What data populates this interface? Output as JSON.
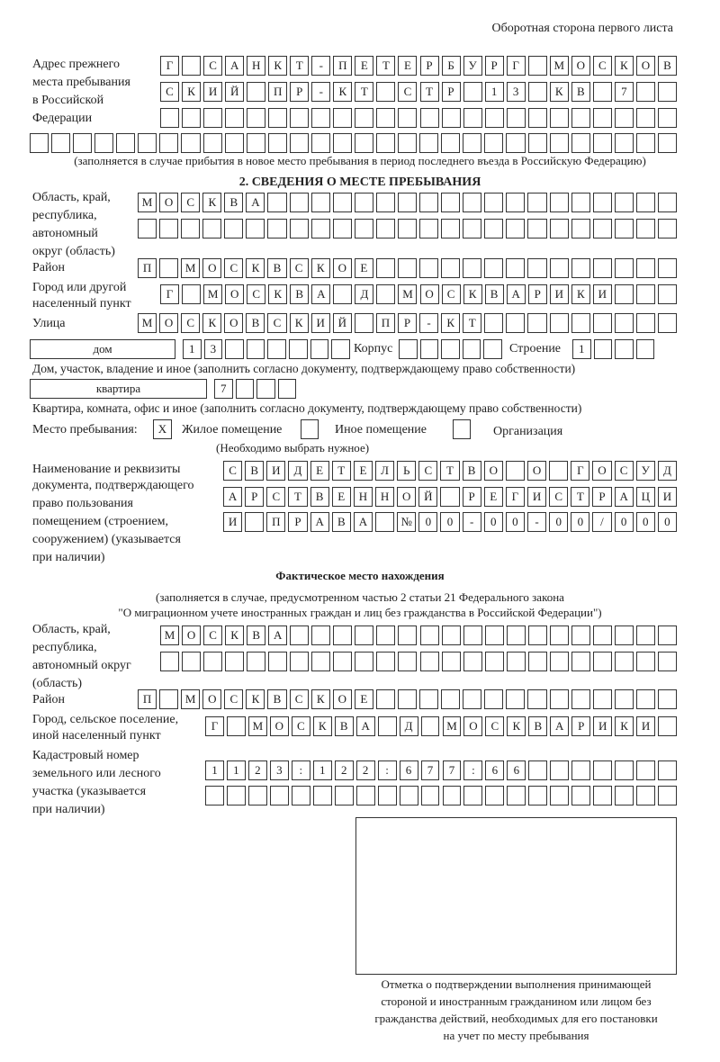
{
  "header": "Оборотная сторона первого листа",
  "prev_address": {
    "label": [
      "Адрес прежнего",
      "места пребывания",
      "в Российской",
      "Федерации"
    ],
    "rows": [
      "Г САНКТ-ПЕТЕРБУРГ МОСКОВ",
      "СКИЙ ПР-КТ СТР 13 КВ 7  ",
      "                        ",
      "                              "
    ],
    "note": "(заполняется в случае прибытия в новое место пребывания в период последнего въезда в Российскую Федерацию)"
  },
  "section2": {
    "title": "2. СВЕДЕНИЯ О МЕСТЕ ПРЕБЫВАНИЯ",
    "region_label": [
      "Область, край,",
      "республика,",
      "автономный",
      "округ (область)"
    ],
    "region_rows": [
      "МОСКВА                   ",
      "                         "
    ],
    "district_label": "Район",
    "district_row": "П МОСКВСКОЕ              ",
    "city_label": [
      "Город или другой",
      "населенный пункт"
    ],
    "city_row": "Г МОСКВА Д МОСКВАРИКИ   ",
    "street_label": "Улица",
    "street_row": "МОСКОВСКИЙ ПР-КТ         ",
    "house_type": "дом",
    "house_cells": "13      ",
    "korpus_label": "Корпус",
    "korpus_cells": "     ",
    "building_label": "Строение",
    "building_cells": "1   ",
    "house_note": "Дом, участок, владение и иное (заполнить согласно документу, подтверждающему право собственности)",
    "apt_type": "квартира",
    "apt_cells": "7   ",
    "apt_note": "Квартира, комната, офис и иное (заполнить согласно документу, подтверждающему право собственности)",
    "stay_label": "Место пребывания:",
    "stay_options": [
      {
        "mark": "X",
        "label": "Жилое помещение",
        "checked": true
      },
      {
        "mark": "",
        "label": "Иное помещение",
        "checked": false
      },
      {
        "mark": "",
        "label": "Организация",
        "checked": false
      }
    ],
    "stay_note": "(Необходимо выбрать нужное)",
    "doc_label": [
      "Наименование и реквизиты",
      "документа, подтверждающего",
      "право пользования",
      "помещением (строением,",
      "сооружением) (указывается",
      "при наличии)"
    ],
    "doc_rows": [
      "СВИДЕТЕЛЬСТВО О ГОСУД",
      "АРСТВЕННОЙ РЕГИСТРАЦИ",
      "И ПРАВА №00-00-00/000"
    ]
  },
  "actual": {
    "title": "Фактическое место нахождения",
    "note": [
      "(заполняется в случае, предусмотренном частью 2 статьи 21 Федерального закона",
      "\"О миграционном учете иностранных граждан и лиц без гражданства в Российской Федерации\")"
    ],
    "region_label": [
      "Область, край,",
      "республика,",
      "автономный округ",
      "(область)"
    ],
    "region_rows": [
      "МОСКВА                  ",
      "                        "
    ],
    "district_label": "Район",
    "district_row": "П МОСКВСКОЕ              ",
    "city_label": [
      "Город, сельское поселение,",
      "иной населенный пункт"
    ],
    "city_row": "Г МОСКВА Д МОСКВАРИКИ ",
    "cadastral_label": [
      "Кадастровый номер",
      "земельного или лесного",
      "участка (указывается",
      "при наличии)"
    ],
    "cadastral_rows": [
      "1123:122:677:66       ",
      "                      "
    ]
  },
  "stamp_caption": [
    "Отметка о подтверждении выполнения принимающей",
    "стороной и иностранным гражданином или лицом без",
    "гражданства действий, необходимых для его постановки",
    "на учет по месту пребывания"
  ]
}
